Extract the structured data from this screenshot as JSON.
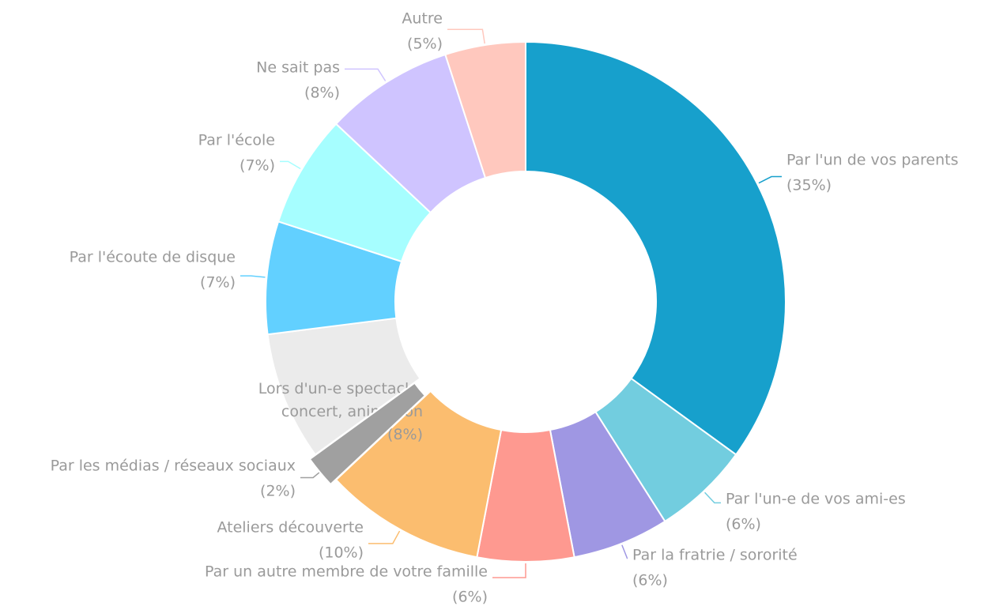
{
  "chart_data": {
    "type": "donut",
    "categories": [
      "Par l'un de vos parents",
      "Par l'un-e de vos ami-es",
      "Par la fratrie / sororité",
      "Par un autre membre de votre famille",
      "Ateliers découverte",
      "Par les médias / réseaux sociaux",
      "Lors d'un-e spectacle, concert, animation",
      "Par l'écoute de disque",
      "Par l'école",
      "Ne sait pas",
      "Autre"
    ],
    "values": [
      35,
      6,
      6,
      6,
      10,
      2,
      8,
      7,
      7,
      8,
      5
    ],
    "value_labels": [
      "(35%)",
      "(6%)",
      "(6%)",
      "(6%)",
      "(10%)",
      "(2%)",
      "(8%)",
      "(7%)",
      "(7%)",
      "(8%)",
      "(5%)"
    ],
    "colors": [
      "#17a0cc",
      "#72cddf",
      "#9f97e3",
      "#fe9990",
      "#fbbd6f",
      "#a0a0a0",
      "#ebebeb",
      "#62d0ff",
      "#a6feff",
      "#cfc4ff",
      "#ffc8be"
    ],
    "exploded": [
      false,
      false,
      false,
      false,
      false,
      true,
      false,
      false,
      false,
      false,
      false
    ]
  }
}
